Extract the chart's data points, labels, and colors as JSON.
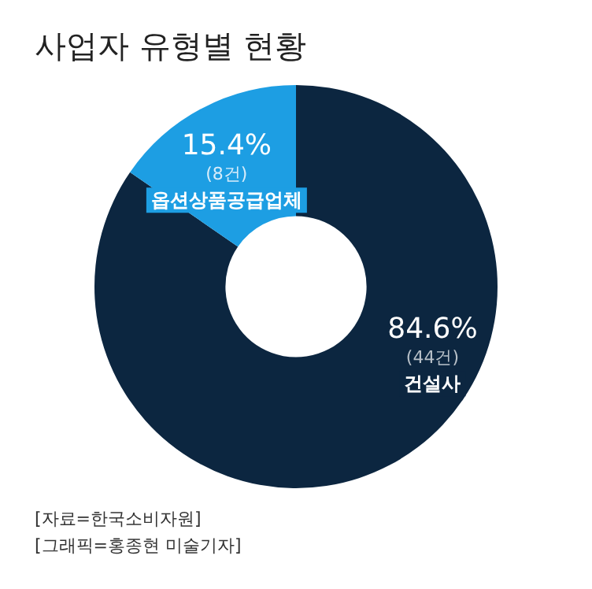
{
  "chart_data": {
    "type": "donut",
    "title": "사업자 유형별 현황",
    "categories": [
      "건설사",
      "옵션상품공급업체"
    ],
    "values": [
      84.6,
      15.4
    ],
    "value_labels": [
      "84.6%",
      "15.4%"
    ],
    "colors": [
      "#0c2640",
      "#1d9ee3"
    ],
    "legend": false,
    "annotations": [
      {
        "text": "(44건)",
        "x": "건설사"
      },
      {
        "text": "(8건)",
        "x": "옵션상품공급업체"
      },
      "[자료=한국소비자원]",
      "[그래픽=홍종현 미술기자]"
    ]
  }
}
